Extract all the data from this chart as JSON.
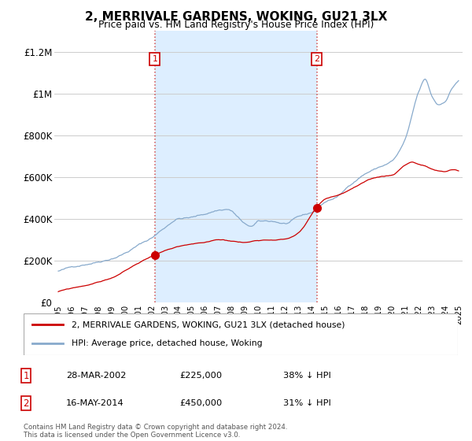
{
  "title": "2, MERRIVALE GARDENS, WOKING, GU21 3LX",
  "subtitle": "Price paid vs. HM Land Registry's House Price Index (HPI)",
  "ylim": [
    0,
    1300000
  ],
  "yticks": [
    0,
    200000,
    400000,
    600000,
    800000,
    1000000,
    1200000
  ],
  "ytick_labels": [
    "£0",
    "£200K",
    "£400K",
    "£600K",
    "£800K",
    "£1M",
    "£1.2M"
  ],
  "sale1": {
    "date_num": 2002.24,
    "price": 225000,
    "label": "1",
    "date_str": "28-MAR-2002",
    "price_str": "£225,000",
    "hpi_str": "38% ↓ HPI"
  },
  "sale2": {
    "date_num": 2014.37,
    "price": 450000,
    "label": "2",
    "date_str": "16-MAY-2014",
    "price_str": "£450,000",
    "hpi_str": "31% ↓ HPI"
  },
  "line1_color": "#cc0000",
  "line2_color": "#88aacc",
  "shade_color": "#ddeeff",
  "vline_color": "#cc3333",
  "legend_label1": "2, MERRIVALE GARDENS, WOKING, GU21 3LX (detached house)",
  "legend_label2": "HPI: Average price, detached house, Woking",
  "footer": "Contains HM Land Registry data © Crown copyright and database right 2024.\nThis data is licensed under the Open Government Licence v3.0.",
  "background_color": "#ffffff",
  "grid_color": "#cccccc",
  "xlim_left": 1994.7,
  "xlim_right": 2025.3
}
